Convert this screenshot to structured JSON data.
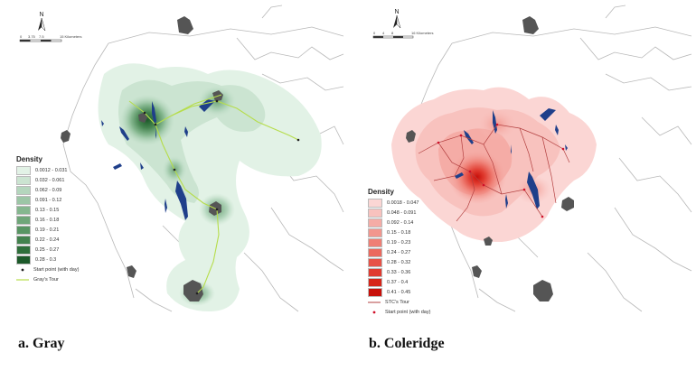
{
  "panels": [
    {
      "caption": "a. Gray",
      "north_label": "N",
      "scale_labels": [
        "0",
        "3.75",
        "7.5",
        "15 Kilometers"
      ],
      "legend_title": "Density",
      "classes": [
        {
          "label": "0.0012 - 0.031",
          "color": "#e2f2e6"
        },
        {
          "label": "0.032 - 0.061",
          "color": "#cbe4d1"
        },
        {
          "label": "0.062 - 0.09",
          "color": "#b4d6bd"
        },
        {
          "label": "0.091 - 0.12",
          "color": "#9cc6a6"
        },
        {
          "label": "0.13 - 0.15",
          "color": "#85b78f"
        },
        {
          "label": "0.16 - 0.18",
          "color": "#6fa679"
        },
        {
          "label": "0.19 - 0.21",
          "color": "#589563"
        },
        {
          "label": "0.22 - 0.24",
          "color": "#43824e"
        },
        {
          "label": "0.25 - 0.27",
          "color": "#2f6f3b"
        },
        {
          "label": "0.28 - 0.3",
          "color": "#1d5a2a"
        }
      ],
      "start_label": "Start point (with day)",
      "tour_label": "Gray's Tour",
      "tour_color": "#b6dd4b"
    },
    {
      "caption": "b. Coleridge",
      "north_label": "N",
      "scale_labels": [
        "0",
        "4",
        "8",
        "16 Kilometers"
      ],
      "legend_title": "Density",
      "classes": [
        {
          "label": "0.0018 - 0.047",
          "color": "#fbd6d4"
        },
        {
          "label": "0.048 - 0.091",
          "color": "#f8c2be"
        },
        {
          "label": "0.092 - 0.14",
          "color": "#f5aca6"
        },
        {
          "label": "0.15 - 0.18",
          "color": "#f2968e"
        },
        {
          "label": "0.19 - 0.23",
          "color": "#ef7f75"
        },
        {
          "label": "0.24 - 0.27",
          "color": "#eb695e"
        },
        {
          "label": "0.28 - 0.32",
          "color": "#e75247"
        },
        {
          "label": "0.33 - 0.36",
          "color": "#e03b30"
        },
        {
          "label": "0.37 - 0.4",
          "color": "#d62519"
        },
        {
          "label": "0.41 - 0.45",
          "color": "#c8100a"
        }
      ],
      "tour_label": "STC's Tour",
      "tour_color": "#b34040",
      "start_label": "Start point (with day)"
    }
  ]
}
